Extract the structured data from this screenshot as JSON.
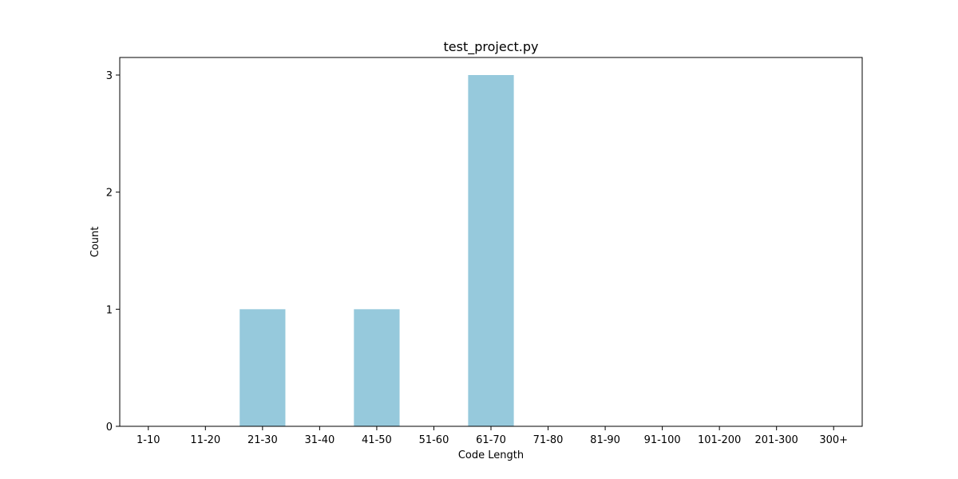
{
  "chart_data": {
    "type": "bar",
    "title": "test_project.py",
    "xlabel": "Code Length",
    "ylabel": "Count",
    "categories": [
      "1-10",
      "11-20",
      "21-30",
      "31-40",
      "41-50",
      "51-60",
      "61-70",
      "71-80",
      "81-90",
      "91-100",
      "101-200",
      "201-300",
      "300+"
    ],
    "values": [
      0,
      0,
      1,
      0,
      1,
      0,
      3,
      0,
      0,
      0,
      0,
      0,
      0
    ],
    "yticks": [
      "0",
      "1",
      "2",
      "3"
    ],
    "ylim": [
      0,
      3.15
    ],
    "grid": false,
    "legend": "none",
    "bar_color": "#96c9dc"
  }
}
